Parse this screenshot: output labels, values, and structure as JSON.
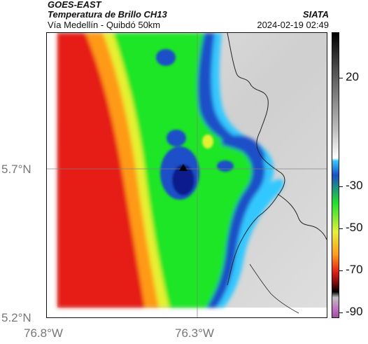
{
  "header": {
    "satellite": "GOES-EAST",
    "product": "Temperatura de Brillo CH13",
    "route": "Vía Medellín - Quibdó 50km",
    "source": "SIATA",
    "datetime": "2024-02-19 02:49"
  },
  "map": {
    "lat_labels": [
      {
        "text": "5.7°N",
        "value": 5.7
      },
      {
        "text": "5.2°N",
        "value": 5.2
      }
    ],
    "lon_labels": [
      {
        "text": "76.8°W",
        "value": -76.8
      },
      {
        "text": "76.3°W",
        "value": -76.3
      }
    ],
    "marker": "location-marker",
    "colors": {
      "cold_core": "#0a1e8c",
      "mid_blue": "#1a50c8",
      "cyan": "#30c8ff",
      "green": "#1ee628",
      "yellow": "#e6f032",
      "orange": "#ff9a14",
      "red": "#e61e14",
      "warm_gray": "#d6d6d6"
    }
  },
  "colorbar": {
    "labels": [
      "20",
      "-30",
      "-50",
      "-70",
      "-90"
    ],
    "unit_hint": "brightness temperature"
  }
}
